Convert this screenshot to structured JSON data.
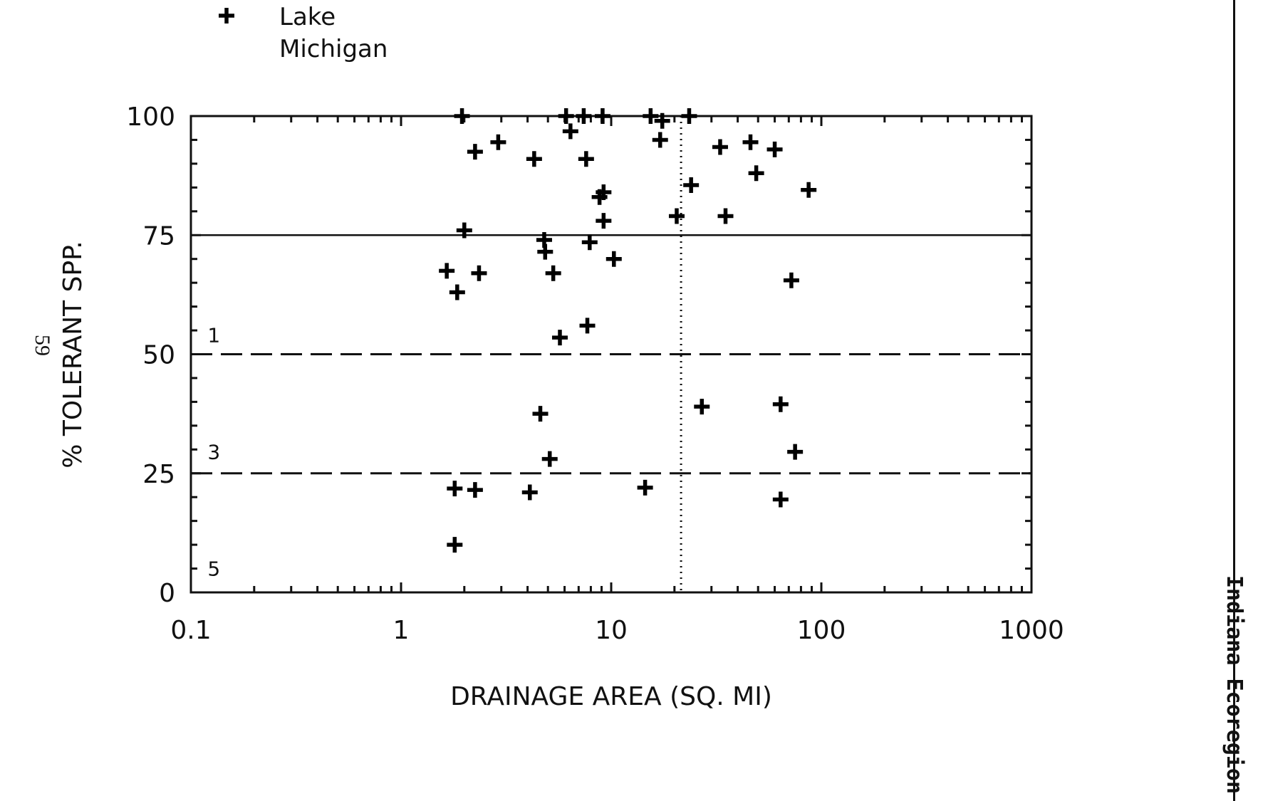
{
  "page": {
    "side_page_number": "59",
    "margin_note": "Indiana Ecoregion"
  },
  "chart_data": {
    "type": "scatter",
    "title": "",
    "xlabel": "DRAINAGE AREA (SQ. MI)",
    "ylabel": "% TOLERANT SPP.",
    "x_scale": "log",
    "xlim": [
      0.1,
      1000
    ],
    "ylim": [
      0,
      100
    ],
    "x_ticks": [
      0.1,
      1,
      10,
      100,
      1000
    ],
    "x_tick_labels": [
      "0.1",
      "1",
      "10",
      "100",
      "1000"
    ],
    "y_ticks": [
      0,
      25,
      50,
      75,
      100
    ],
    "y_tick_labels": [
      "0",
      "25",
      "50",
      "75",
      "100"
    ],
    "grid": false,
    "legend": {
      "position": "top-left",
      "entries": [
        {
          "marker": "plus",
          "label_lines": [
            "Lake",
            "Michigan"
          ]
        }
      ]
    },
    "reference_lines": [
      {
        "orientation": "horizontal",
        "y": 75,
        "style": "solid"
      },
      {
        "orientation": "horizontal",
        "y": 50,
        "style": "dashed"
      },
      {
        "orientation": "horizontal",
        "y": 25,
        "style": "dashed"
      },
      {
        "orientation": "vertical",
        "x": 21.5,
        "style": "dotted"
      }
    ],
    "zone_labels": [
      {
        "text": "1",
        "x": 0.12,
        "y": 54
      },
      {
        "text": "3",
        "x": 0.12,
        "y": 29.5
      },
      {
        "text": "5",
        "x": 0.12,
        "y": 5
      }
    ],
    "series": [
      {
        "name": "Lake Michigan",
        "marker": "plus",
        "points": [
          [
            1.95,
            100
          ],
          [
            2.25,
            92.5
          ],
          [
            2.9,
            94.5
          ],
          [
            4.3,
            91
          ],
          [
            6.1,
            100
          ],
          [
            6.4,
            96.8
          ],
          [
            7.4,
            100
          ],
          [
            7.6,
            91
          ],
          [
            9.1,
            100
          ],
          [
            8.8,
            83
          ],
          [
            9.2,
            84
          ],
          [
            9.2,
            78
          ],
          [
            15.4,
            100
          ],
          [
            17.5,
            99
          ],
          [
            17.1,
            95
          ],
          [
            23.5,
            100
          ],
          [
            20.5,
            79
          ],
          [
            24,
            85.5
          ],
          [
            33,
            93.5
          ],
          [
            35,
            79
          ],
          [
            46,
            94.5
          ],
          [
            49,
            88
          ],
          [
            60,
            93
          ],
          [
            87,
            84.5
          ],
          [
            2.0,
            76
          ],
          [
            4.8,
            74
          ],
          [
            4.85,
            71.5
          ],
          [
            7.9,
            73.5
          ],
          [
            1.65,
            67.5
          ],
          [
            2.35,
            67
          ],
          [
            5.3,
            67
          ],
          [
            10.3,
            70
          ],
          [
            1.85,
            63
          ],
          [
            72,
            65.5
          ],
          [
            5.7,
            53.5
          ],
          [
            7.7,
            56
          ],
          [
            4.6,
            37.5
          ],
          [
            27,
            39
          ],
          [
            64,
            39.5
          ],
          [
            5.1,
            28
          ],
          [
            75,
            29.5
          ],
          [
            1.8,
            21.8
          ],
          [
            2.25,
            21.5
          ],
          [
            4.1,
            21
          ],
          [
            14.5,
            22
          ],
          [
            64,
            19.5
          ],
          [
            1.8,
            10
          ]
        ]
      }
    ]
  }
}
